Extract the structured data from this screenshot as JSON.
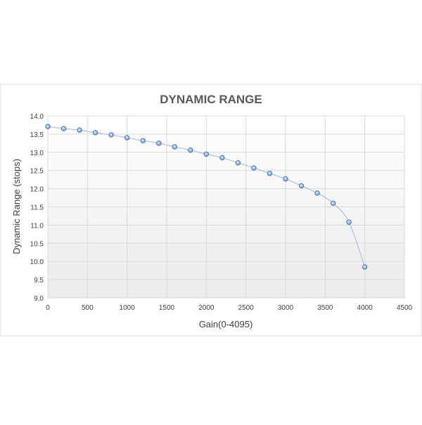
{
  "chart_data": {
    "type": "scatter",
    "title": "DYNAMIC RANGE",
    "xlabel": "Gain(0-4095)",
    "ylabel": "Dynamic Range (stops)",
    "xlim": [
      0,
      4500
    ],
    "ylim": [
      9.0,
      14.0
    ],
    "x_ticks": [
      0,
      500,
      1000,
      1500,
      2000,
      2500,
      3000,
      3500,
      4000,
      4500
    ],
    "y_ticks": [
      "9.0",
      "9.5",
      "10.0",
      "10.5",
      "11.0",
      "11.5",
      "12.0",
      "12.5",
      "13.0",
      "13.5",
      "14.0"
    ],
    "grid": true,
    "legend": "none",
    "smooth_line": true,
    "series": [
      {
        "color": "#9cb8dc",
        "marker_fill": "#8fb0d8",
        "marker_stroke": "#4a72a8",
        "x": [
          0,
          200,
          400,
          600,
          800,
          1000,
          1200,
          1400,
          1600,
          1800,
          2000,
          2200,
          2400,
          2600,
          2800,
          3000,
          3200,
          3400,
          3600,
          3800,
          4000
        ],
        "y": [
          13.71,
          13.65,
          13.61,
          13.54,
          13.48,
          13.4,
          13.32,
          13.25,
          13.15,
          13.06,
          12.95,
          12.85,
          12.71,
          12.57,
          12.42,
          12.27,
          12.08,
          11.88,
          11.6,
          11.08,
          9.85
        ]
      }
    ]
  }
}
